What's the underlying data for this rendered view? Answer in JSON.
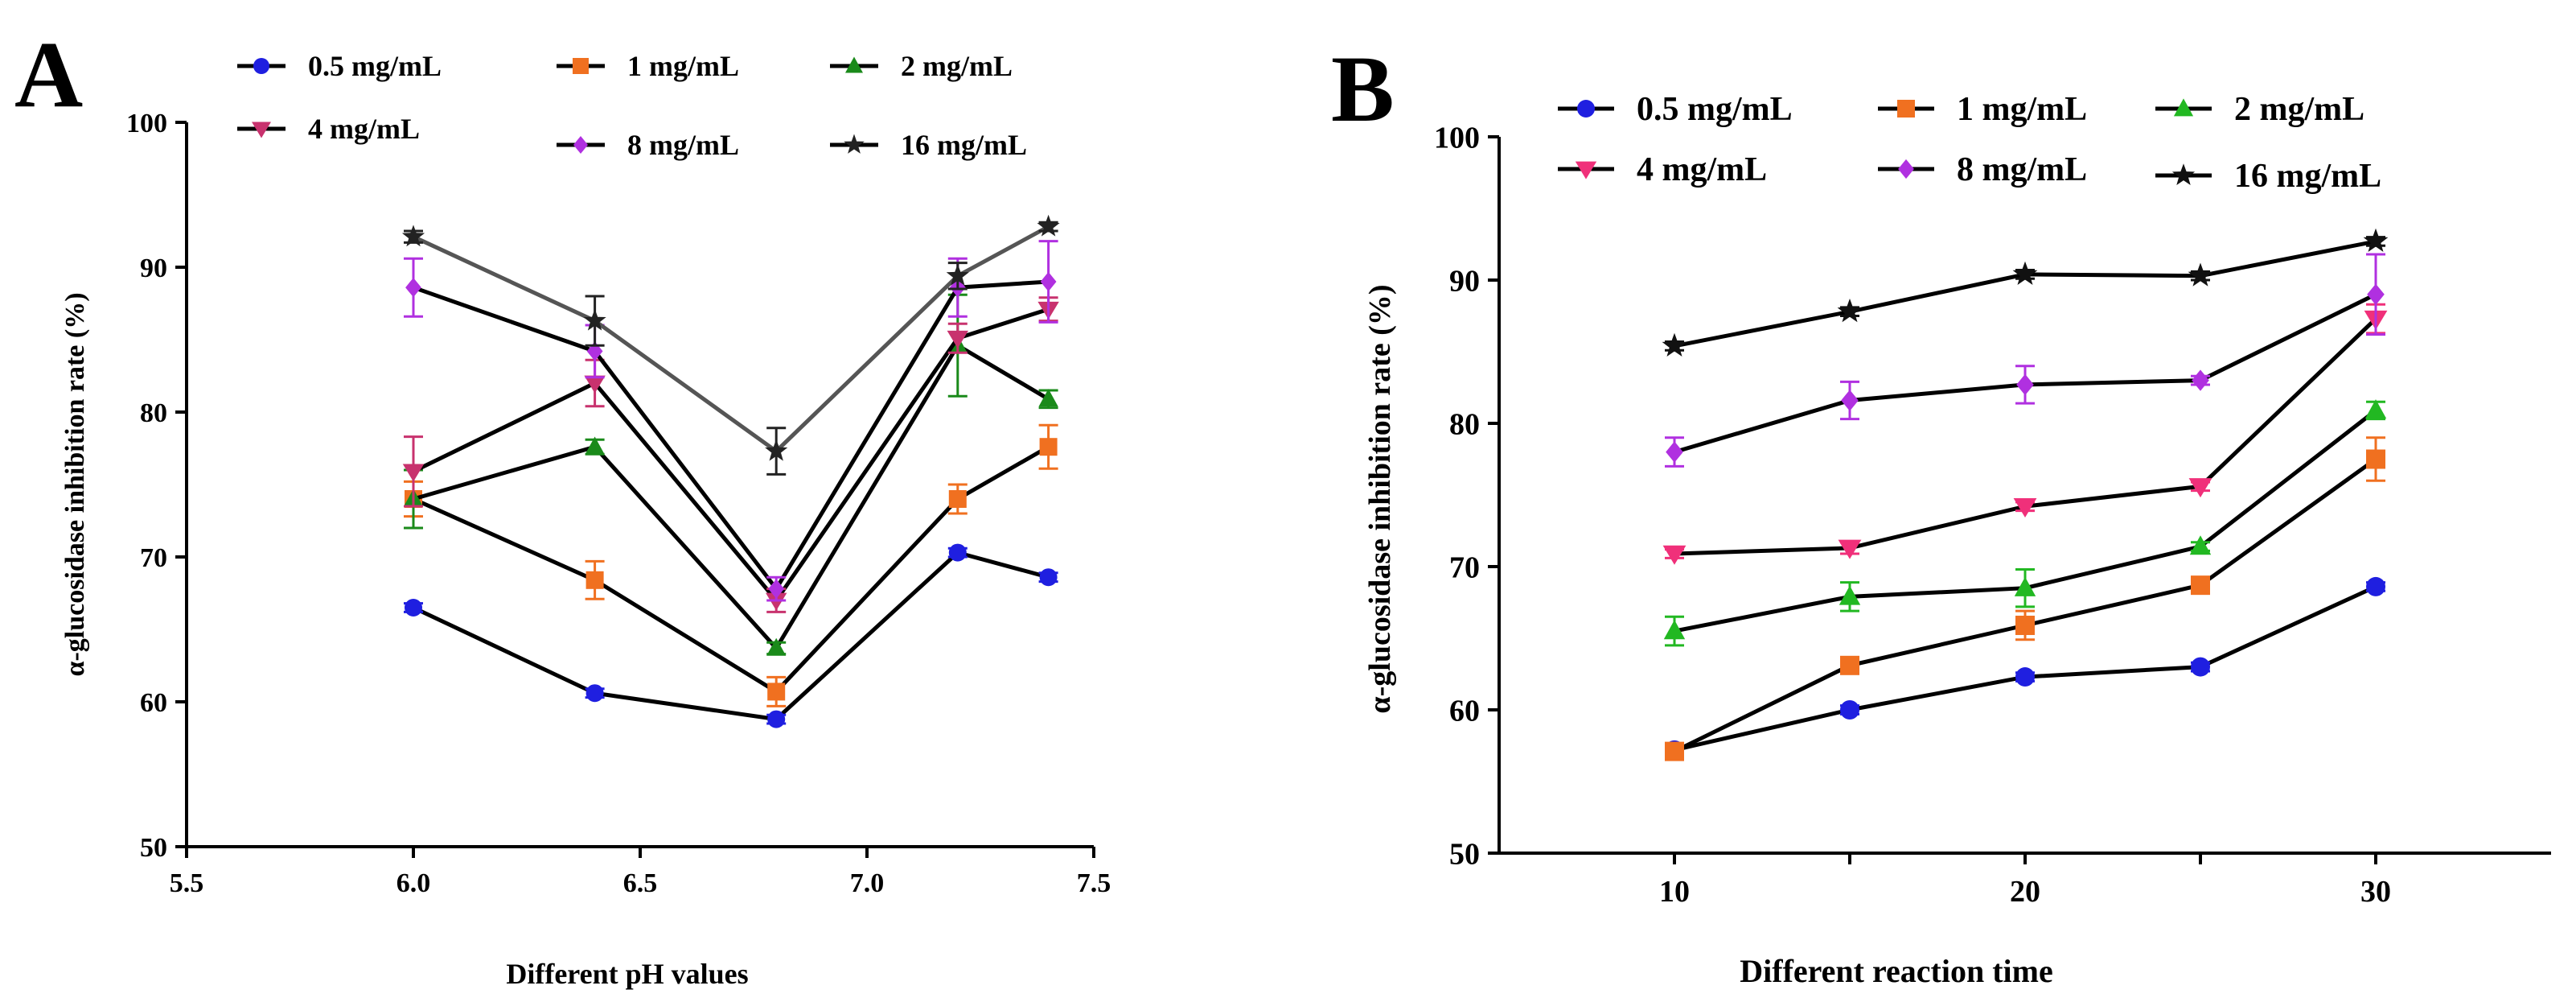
{
  "chart_data": [
    {
      "panel_label": "A",
      "type": "line",
      "title": "",
      "xlabel": "Different pH values",
      "ylabel": "α-glucosidase inhibition rate (%)",
      "xlim": [
        5.5,
        7.5
      ],
      "ylim": [
        50,
        100
      ],
      "xticks": [
        5.5,
        6.0,
        6.5,
        7.0,
        7.5
      ],
      "xtick_labels": [
        "5.5",
        "6.0",
        "6.5",
        "7.0",
        "7.5"
      ],
      "yticks": [
        50,
        60,
        70,
        80,
        90,
        100
      ],
      "ytick_labels": [
        "50",
        "60",
        "70",
        "80",
        "90",
        "100"
      ],
      "grid": false,
      "legend_position": "top",
      "x": [
        6.0,
        6.4,
        6.8,
        7.2,
        7.4
      ],
      "series": [
        {
          "name": "0.5 mg/mL",
          "marker": "circle",
          "color": "#1f1fe0",
          "values": [
            66.5,
            60.6,
            58.8,
            70.3,
            68.6
          ],
          "errors": [
            0.3,
            0.3,
            0.3,
            0.3,
            0.3
          ]
        },
        {
          "name": "1 mg/mL",
          "marker": "square",
          "color": "#f07020",
          "values": [
            74.0,
            68.4,
            60.7,
            74.0,
            77.6
          ],
          "errors": [
            1.2,
            1.3,
            1.0,
            1.0,
            1.5
          ]
        },
        {
          "name": "2 mg/mL",
          "marker": "triangle-up",
          "color": "#1a8a1a",
          "values": [
            74.0,
            77.6,
            63.7,
            84.6,
            80.9
          ],
          "errors": [
            2.0,
            0.5,
            0.4,
            3.5,
            0.6
          ]
        },
        {
          "name": "4 mg/mL",
          "marker": "triangle-down",
          "color": "#c8326e",
          "values": [
            75.9,
            82.0,
            67.0,
            85.1,
            87.1
          ],
          "errors": [
            2.4,
            1.6,
            0.8,
            1.0,
            0.8
          ]
        },
        {
          "name": "8 mg/mL",
          "marker": "diamond",
          "color": "#b030e0",
          "values": [
            88.6,
            84.2,
            67.8,
            88.6,
            89.0
          ],
          "errors": [
            2.0,
            1.8,
            0.8,
            2.0,
            2.8
          ]
        },
        {
          "name": "16 mg/mL",
          "marker": "star",
          "color": "#222222",
          "values": [
            92.1,
            86.3,
            77.3,
            89.4,
            92.8
          ],
          "errors": [
            0.4,
            1.7,
            1.6,
            0.9,
            0.3
          ]
        }
      ]
    },
    {
      "panel_label": "B",
      "type": "line",
      "title": "",
      "xlabel": "Different reaction time",
      "ylabel": "α-glucosidase inhibition rate (%)",
      "xlim": [
        5,
        35
      ],
      "ylim": [
        50,
        100
      ],
      "xticks": [
        10,
        20,
        30
      ],
      "xtick_labels": [
        "10",
        "20",
        "30"
      ],
      "xticks_minor": [
        15,
        25
      ],
      "yticks": [
        50,
        60,
        70,
        80,
        90,
        100
      ],
      "ytick_labels": [
        "50",
        "60",
        "70",
        "80",
        "90",
        "100"
      ],
      "grid": false,
      "legend_position": "top",
      "x": [
        10,
        15,
        20,
        25,
        30
      ],
      "series": [
        {
          "name": "0.5 mg/mL",
          "marker": "circle",
          "color": "#1f1fe0",
          "values": [
            57.2,
            60.0,
            62.3,
            63.0,
            68.6
          ],
          "errors": [
            0.3,
            0.3,
            0.3,
            0.3,
            0.3
          ]
        },
        {
          "name": "1 mg/mL",
          "marker": "square",
          "color": "#f07020",
          "values": [
            57.1,
            63.1,
            65.9,
            68.7,
            77.5
          ],
          "errors": [
            0.3,
            0.4,
            1.0,
            0.4,
            1.5
          ]
        },
        {
          "name": "2 mg/mL",
          "marker": "triangle-up",
          "color": "#22b822",
          "values": [
            65.5,
            67.9,
            68.5,
            71.4,
            80.9
          ],
          "errors": [
            1.0,
            1.0,
            1.3,
            0.3,
            0.6
          ]
        },
        {
          "name": "4 mg/mL",
          "marker": "triangle-down",
          "color": "#f0307a",
          "values": [
            70.9,
            71.3,
            74.2,
            75.6,
            87.3
          ],
          "errors": [
            0.3,
            0.4,
            0.3,
            0.3,
            1.0
          ]
        },
        {
          "name": "8 mg/mL",
          "marker": "diamond",
          "color": "#b030e0",
          "values": [
            78.0,
            81.6,
            82.7,
            83.0,
            89.0
          ],
          "errors": [
            1.0,
            1.3,
            1.3,
            0.3,
            2.8
          ]
        },
        {
          "name": "16 mg/mL",
          "marker": "star",
          "color": "#111111",
          "values": [
            85.4,
            87.8,
            90.4,
            90.3,
            92.7
          ],
          "errors": [
            0.3,
            0.3,
            0.3,
            0.3,
            0.3
          ]
        }
      ]
    }
  ]
}
